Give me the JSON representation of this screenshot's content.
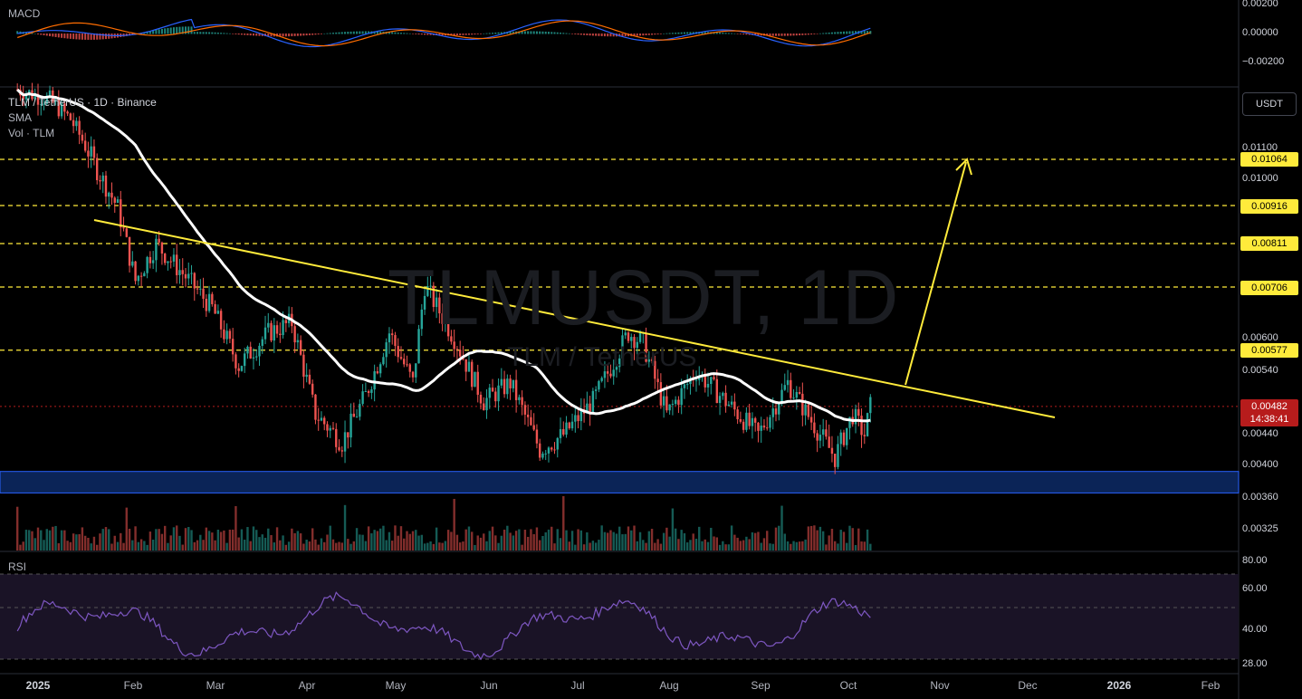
{
  "chart_data": {
    "type": "candlestick",
    "symbol": "TLM / TetherUS · 1D · Binance",
    "watermark": "TLMUSDT, 1D",
    "watermark_sub": "TLM / TetherUS",
    "indicators": [
      "SMA",
      "Vol · TLM"
    ],
    "currency_button": "USDT",
    "x_ticks": [
      "2025",
      "Feb",
      "Mar",
      "Apr",
      "May",
      "Jun",
      "Jul",
      "Aug",
      "Sep",
      "Oct",
      "Nov",
      "Dec",
      "2026",
      "Feb"
    ],
    "y_ticks": [
      "0.01100",
      "0.01000",
      "0.00600",
      "0.00540",
      "0.00440",
      "0.00400",
      "0.00360",
      "0.00325"
    ],
    "levels": [
      "0.01064",
      "0.00916",
      "0.00811",
      "0.00706",
      "0.00577"
    ],
    "last_price": "0.00482",
    "countdown": "14:38:41",
    "support_zone": [
      0.00365,
      0.00392
    ],
    "price_path": [
      [
        "2024-12-25",
        0.0136
      ],
      [
        "2025-01-05",
        0.0131
      ],
      [
        "2025-01-12",
        0.0122
      ],
      [
        "2025-01-20",
        0.0105
      ],
      [
        "2025-01-28",
        0.0091
      ],
      [
        "2025-02-03",
        0.0072
      ],
      [
        "2025-02-10",
        0.0081
      ],
      [
        "2025-02-20",
        0.0073
      ],
      [
        "2025-03-01",
        0.0066
      ],
      [
        "2025-03-10",
        0.0055
      ],
      [
        "2025-03-20",
        0.0061
      ],
      [
        "2025-03-28",
        0.0063
      ],
      [
        "2025-04-05",
        0.0047
      ],
      [
        "2025-04-14",
        0.0043
      ],
      [
        "2025-04-22",
        0.005
      ],
      [
        "2025-04-30",
        0.0061
      ],
      [
        "2025-05-08",
        0.0052
      ],
      [
        "2025-05-12",
        0.0071
      ],
      [
        "2025-05-22",
        0.006
      ],
      [
        "2025-06-01",
        0.0049
      ],
      [
        "2025-06-10",
        0.0052
      ],
      [
        "2025-06-20",
        0.0042
      ],
      [
        "2025-06-28",
        0.0044
      ],
      [
        "2025-07-08",
        0.0049
      ],
      [
        "2025-07-20",
        0.0061
      ],
      [
        "2025-07-25",
        0.0059
      ],
      [
        "2025-08-02",
        0.0047
      ],
      [
        "2025-08-12",
        0.0054
      ],
      [
        "2025-08-22",
        0.0049
      ],
      [
        "2025-09-02",
        0.0044
      ],
      [
        "2025-09-12",
        0.0052
      ],
      [
        "2025-09-20",
        0.0046
      ],
      [
        "2025-09-28",
        0.0041
      ],
      [
        "2025-10-04",
        0.0047
      ],
      [
        "2025-10-08",
        0.0044
      ],
      [
        "2025-10-10",
        0.00482
      ]
    ],
    "macd": {
      "label": "MACD",
      "y_ticks": [
        "0.00200",
        "0.00000",
        "−0.00200"
      ]
    },
    "rsi": {
      "label": "RSI",
      "y_ticks": [
        "80.00",
        "60.00",
        "40.00",
        "28.00"
      ]
    },
    "colors": {
      "up": "#26a69a",
      "down": "#ef5350",
      "sma": "#ffffff",
      "trendline": "#ffeb3b",
      "zone": "#0d2a66",
      "rsi": "#7e57c2"
    }
  }
}
